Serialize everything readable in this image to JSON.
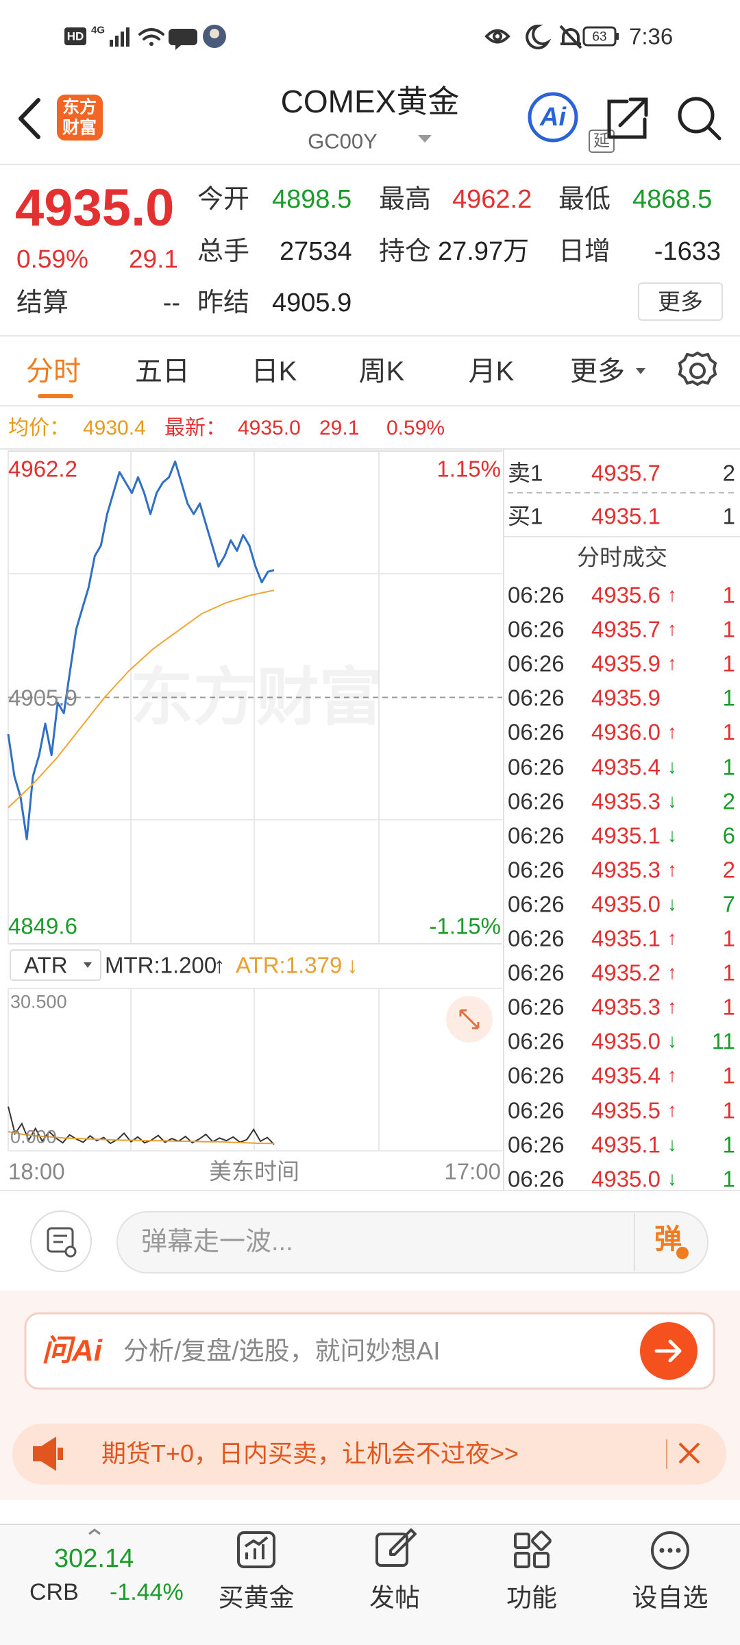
{
  "status_bar": {
    "hd": "HD",
    "network": "4G",
    "battery": "63",
    "time": "7:36"
  },
  "header": {
    "logo": [
      "东方",
      "财富"
    ],
    "title": "COMEX黄金",
    "code": "GC00Y",
    "badge": "延",
    "ai": "Ai"
  },
  "quote": {
    "price": "4935.0",
    "change_pct": "0.59%",
    "change": "29.1",
    "fields": [
      {
        "label": "今开",
        "value": "4898.5",
        "color": "#1a9b2a"
      },
      {
        "label": "最高",
        "value": "4962.2",
        "color": "#e33030"
      },
      {
        "label": "最低",
        "value": "4868.5",
        "color": "#1a9b2a"
      },
      {
        "label": "总手",
        "value": "27534",
        "color": "#222222"
      },
      {
        "label": "持仓",
        "value": "27.97万",
        "color": "#222222"
      },
      {
        "label": "日增",
        "value": "-1633",
        "color": "#222222"
      },
      {
        "label": "昨结",
        "value": "4905.9",
        "color": "#222222"
      }
    ],
    "settle": {
      "label": "结算",
      "value": "--"
    },
    "more": "更多"
  },
  "tabs": {
    "items": [
      "分时",
      "五日",
      "日K",
      "周K",
      "月K",
      "更多"
    ],
    "active": 0
  },
  "info_line": {
    "avg_label": "均价：",
    "avg": "4930.4",
    "last_label": "最新：",
    "last": "4935.0",
    "change": "29.1",
    "change_pct": "0.59%"
  },
  "chart_data": [
    {
      "type": "line",
      "watermark": "东方财富",
      "ylim": [
        4849.6,
        4962.2
      ],
      "yticks": [
        4962.2,
        4905.9,
        4849.6
      ],
      "y2lim": [
        -1.15,
        1.15
      ],
      "y2ticks": [
        {
          "value": 1.15,
          "label": "1.15%"
        },
        {
          "value": -1.15,
          "label": "-1.15%"
        }
      ],
      "x_labels": [
        "18:00",
        "17:00"
      ],
      "xlabel": "美东时间",
      "series": [
        {
          "color": "#2f6fc4",
          "values": [
            4897.5,
            4887.9,
            4883.1,
            4873.5,
            4887.9,
            4892.7,
            4899.9,
            4892.7,
            4904.7,
            4902.3,
            4911.9,
            4921.5,
            4926.3,
            4931.0,
            4938.2,
            4940.6,
            4947.8,
            4952.6,
            4957.4,
            4955.0,
            4952.6,
            4956.2,
            4952.6,
            4947.8,
            4952.6,
            4955.0,
            4956.2,
            4959.8,
            4955.0,
            4950.2,
            4947.8,
            4950.2,
            4945.4,
            4940.6,
            4935.8,
            4938.2,
            4941.8,
            4939.4,
            4943.0,
            4940.6,
            4935.8,
            4932.2,
            4934.6,
            4935.0
          ]
        },
        {
          "color": "#f0a533",
          "values": [
            4880.7,
            4886.0,
            4892.0,
            4899.0,
            4906.0,
            4912.0,
            4917.0,
            4921.0,
            4925.0,
            4927.5,
            4929.2,
            4930.4
          ]
        }
      ]
    },
    {
      "type": "line",
      "indicator": "ATR",
      "mtr": "MTR:1.200",
      "mtr_arrow": "↑",
      "atr": "ATR:1.379",
      "atr_arrow": "↓",
      "ylim": [
        0,
        30.5
      ],
      "yticks": [
        {
          "value": 30.5,
          "label": "30.500"
        },
        {
          "value": 0,
          "label": "0.000"
        }
      ],
      "series": [
        {
          "color": "#333333",
          "values": [
            8.3,
            3.2,
            5.1,
            2.0,
            4.2,
            1.8,
            3.6,
            2.4,
            1.5,
            3.0,
            2.2,
            1.6,
            2.8,
            1.9,
            2.5,
            1.4,
            2.1,
            3.3,
            1.7,
            2.6,
            1.5,
            2.0,
            2.9,
            1.6,
            2.3,
            1.8,
            2.7,
            1.5,
            2.2,
            3.1,
            1.7,
            2.4,
            1.9,
            2.6,
            1.6,
            2.1,
            4.0,
            1.8,
            2.5,
            1.2
          ]
        },
        {
          "color": "#e8a030",
          "values": [
            3.6,
            3.1,
            2.8,
            2.6,
            2.4,
            2.3,
            2.2,
            2.1,
            2.0,
            2.0,
            1.9,
            1.9,
            1.8,
            1.8,
            1.7,
            1.7,
            1.6,
            1.5,
            1.4,
            1.379
          ]
        }
      ]
    }
  ],
  "order_book": {
    "asks": [
      {
        "label": "卖1",
        "price": "4935.7",
        "volume": "2"
      }
    ],
    "bids": [
      {
        "label": "买1",
        "price": "4935.1",
        "volume": "1"
      }
    ],
    "trades_title": "分时成交",
    "trades": [
      {
        "time": "06:26",
        "price": "4935.6",
        "arrow": "↑",
        "volume": "1",
        "color": "#e33030"
      },
      {
        "time": "06:26",
        "price": "4935.7",
        "arrow": "↑",
        "volume": "1",
        "color": "#e33030"
      },
      {
        "time": "06:26",
        "price": "4935.9",
        "arrow": "↑",
        "volume": "1",
        "color": "#e33030"
      },
      {
        "time": "06:26",
        "price": "4935.9",
        "volume": "1",
        "color": "#1a9b2a"
      },
      {
        "time": "06:26",
        "price": "4936.0",
        "arrow": "↑",
        "volume": "1",
        "color": "#e33030"
      },
      {
        "time": "06:26",
        "price": "4935.4",
        "arrow": "↓",
        "volume": "1",
        "color": "#1a9b2a"
      },
      {
        "time": "06:26",
        "price": "4935.3",
        "arrow": "↓",
        "volume": "2",
        "color": "#1a9b2a"
      },
      {
        "time": "06:26",
        "price": "4935.1",
        "arrow": "↓",
        "volume": "6",
        "color": "#1a9b2a"
      },
      {
        "time": "06:26",
        "price": "4935.3",
        "arrow": "↑",
        "volume": "2",
        "color": "#e33030"
      },
      {
        "time": "06:26",
        "price": "4935.0",
        "arrow": "↓",
        "volume": "7",
        "color": "#1a9b2a"
      },
      {
        "time": "06:26",
        "price": "4935.1",
        "arrow": "↑",
        "volume": "1",
        "color": "#e33030"
      },
      {
        "time": "06:26",
        "price": "4935.2",
        "arrow": "↑",
        "volume": "1",
        "color": "#e33030"
      },
      {
        "time": "06:26",
        "price": "4935.3",
        "arrow": "↑",
        "volume": "1",
        "color": "#e33030"
      },
      {
        "time": "06:26",
        "price": "4935.0",
        "arrow": "↓",
        "volume": "11",
        "color": "#1a9b2a"
      },
      {
        "time": "06:26",
        "price": "4935.4",
        "arrow": "↑",
        "volume": "1",
        "color": "#e33030"
      },
      {
        "time": "06:26",
        "price": "4935.5",
        "arrow": "↑",
        "volume": "1",
        "color": "#e33030"
      },
      {
        "time": "06:26",
        "price": "4935.1",
        "arrow": "↓",
        "volume": "1",
        "color": "#1a9b2a"
      },
      {
        "time": "06:26",
        "price": "4935.0",
        "arrow": "↓",
        "volume": "1",
        "color": "#1a9b2a"
      }
    ]
  },
  "comment_bar": {
    "placeholder": "弹幕走一波...",
    "button": "弹"
  },
  "ask_ai": {
    "logo": "问Ai",
    "placeholder": "分析/复盘/选股，就问妙想AI"
  },
  "banner": {
    "text": "期货T+0，日内买卖，让机会不过夜>>"
  },
  "bottom_nav": {
    "index": {
      "value": "302.14",
      "name": "CRB",
      "change": "-1.44%"
    },
    "items": [
      "买黄金",
      "发帖",
      "功能",
      "设自选"
    ]
  }
}
